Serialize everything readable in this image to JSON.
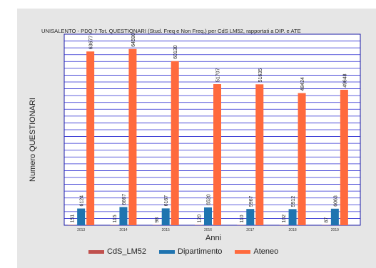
{
  "chart_data": {
    "type": "bar",
    "title": "UNISALENTO - PDQ-7 Tot. QUESTIONARI (Stud. Freq e Non Freq.) per CdS LM52, rapportati a DIP. e ATE",
    "xlabel": "Anni",
    "ylabel": "Numero QUESTIONARI",
    "ylim": [
      0,
      70000
    ],
    "grid": true,
    "legend_position": "bottom",
    "categories": [
      "2013",
      "2014",
      "2015",
      "2016",
      "2017",
      "2018",
      "2019"
    ],
    "series": [
      {
        "name": "CdS_LM52",
        "color": "#c0504d",
        "values": [
          151,
          115,
          98,
          120,
          110,
          102,
          87
        ],
        "labels": [
          "151",
          "115",
          "98",
          "120",
          "110",
          "102",
          "87"
        ]
      },
      {
        "name": "Dipartimento",
        "color": "#1f74b0",
        "values": [
          6124,
          6667,
          6167,
          6520,
          5967,
          5912,
          6063
        ],
        "labels": [
          "6124",
          "6667",
          "6167",
          "6520",
          "5967",
          "5912",
          "6063"
        ]
      },
      {
        "name": "Ateneo",
        "color": "#ff6a3d",
        "values": [
          63677,
          64590,
          60130,
          51707,
          51635,
          48424,
          49648
        ],
        "labels": [
          "63677",
          "64590",
          "60130",
          "51707",
          "51635",
          "48424",
          "49648"
        ]
      }
    ]
  }
}
